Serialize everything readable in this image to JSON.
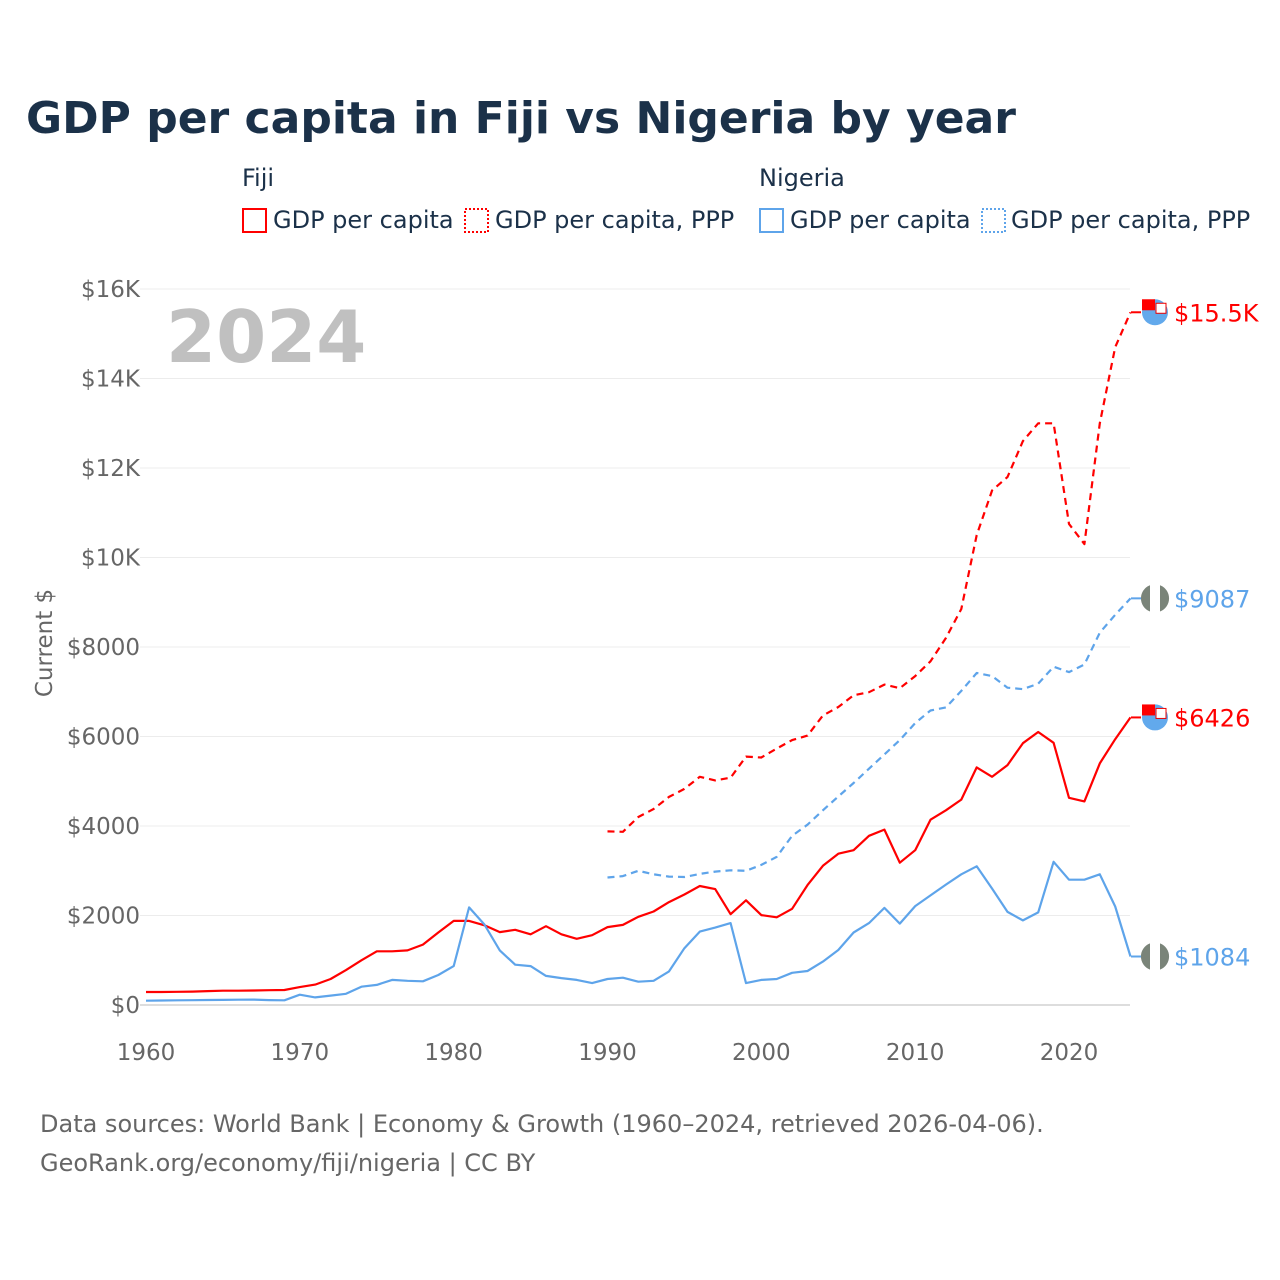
{
  "chart_data": {
    "type": "line",
    "title": "GDP per capita in Fiji vs Nigeria by year",
    "ylabel": "Current $",
    "xlabel": "",
    "year_label": "2024",
    "xlim": [
      1960,
      2024
    ],
    "ylim": [
      0,
      16000
    ],
    "x_ticks": [
      1960,
      1970,
      1980,
      1990,
      2000,
      2010,
      2020
    ],
    "x_tick_labels": [
      "1960",
      "1970",
      "1980",
      "1990",
      "2000",
      "2010",
      "2020"
    ],
    "y_ticks": [
      0,
      2000,
      4000,
      6000,
      8000,
      10000,
      12000,
      14000,
      16000
    ],
    "y_tick_labels": [
      "$0",
      "$2000",
      "$4000",
      "$6000",
      "$8000",
      "$10K",
      "$12K",
      "$14K",
      "$16K"
    ],
    "grid": true,
    "legend": {
      "placement": "top",
      "groups": [
        {
          "name": "Fiji",
          "items": [
            "GDP per capita",
            "GDP per capita, PPP"
          ]
        },
        {
          "name": "Nigeria",
          "items": [
            "GDP per capita",
            "GDP per capita, PPP"
          ]
        }
      ]
    },
    "series": [
      {
        "name": "Fiji GDP per capita",
        "country": "Fiji",
        "style": "solid",
        "color": "#ff0000",
        "start": 1960,
        "end_label": "$6426",
        "values": [
          290,
          290,
          295,
          300,
          310,
          320,
          320,
          325,
          330,
          335,
          400,
          455,
          580,
          780,
          1000,
          1200,
          1200,
          1220,
          1350,
          1620,
          1880,
          1880,
          1780,
          1630,
          1680,
          1580,
          1760,
          1580,
          1480,
          1560,
          1740,
          1790,
          1970,
          2090,
          2300,
          2470,
          2660,
          2590,
          2030,
          2340,
          2010,
          1960,
          2150,
          2680,
          3110,
          3380,
          3460,
          3780,
          3920,
          3180,
          3460,
          4140,
          4350,
          4590,
          5310,
          5100,
          5360,
          5850,
          6100,
          5860,
          4630,
          4550,
          5400,
          5940,
          6426
        ]
      },
      {
        "name": "Fiji GDP per capita, PPP",
        "country": "Fiji",
        "style": "dashed",
        "color": "#ff0000",
        "start": 1990,
        "end_label": "$15.5K",
        "values": [
          3880,
          3870,
          4200,
          4380,
          4650,
          4830,
          5100,
          5020,
          5080,
          5550,
          5530,
          5730,
          5920,
          6020,
          6470,
          6660,
          6920,
          6990,
          7160,
          7080,
          7350,
          7680,
          8200,
          8850,
          10500,
          11500,
          11800,
          12600,
          13000,
          13000,
          10750,
          10300,
          13000,
          14700,
          15480
        ]
      },
      {
        "name": "Nigeria GDP per capita",
        "country": "Nigeria",
        "style": "solid",
        "color": "#5ea4ea",
        "start": 1960,
        "end_label": "$1084",
        "values": [
          95,
          100,
          105,
          108,
          112,
          115,
          118,
          120,
          110,
          105,
          230,
          170,
          210,
          250,
          410,
          450,
          560,
          540,
          530,
          670,
          870,
          2180,
          1800,
          1220,
          900,
          870,
          650,
          600,
          560,
          490,
          580,
          610,
          520,
          540,
          750,
          1270,
          1640,
          1730,
          1830,
          490,
          560,
          580,
          720,
          760,
          970,
          1230,
          1620,
          1830,
          2170,
          1820,
          2210,
          2450,
          2690,
          2920,
          3100,
          2600,
          2080,
          1890,
          2070,
          3200,
          2800,
          2800,
          2920,
          2200,
          1084
        ]
      },
      {
        "name": "Nigeria GDP per capita, PPP",
        "country": "Nigeria",
        "style": "dashed",
        "color": "#5ea4ea",
        "start": 1990,
        "end_label": "$9087",
        "values": [
          2850,
          2880,
          3000,
          2920,
          2870,
          2860,
          2930,
          2980,
          3010,
          3000,
          3130,
          3310,
          3780,
          4030,
          4350,
          4660,
          4960,
          5280,
          5600,
          5920,
          6300,
          6580,
          6650,
          7020,
          7420,
          7350,
          7090,
          7060,
          7180,
          7560,
          7440,
          7610,
          8320,
          8720,
          9087
        ]
      }
    ],
    "source_line1": "Data sources: World Bank | Economy & Growth (1960–2024, retrieved 2026-04-06).",
    "source_line2": "GeoRank.org/economy/fiji/nigeria | CC BY"
  }
}
